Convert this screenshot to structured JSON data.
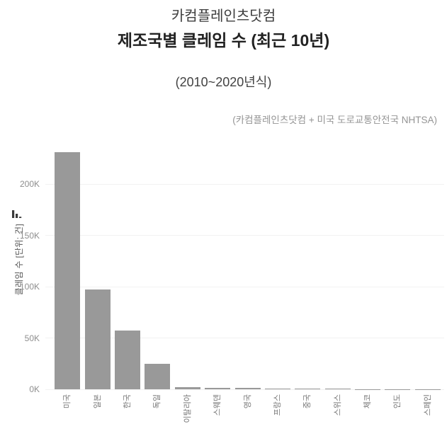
{
  "header": {
    "title_small": "카컴플레인츠닷컴",
    "title_main": "제조국별 클레임 수 (최근 10년)",
    "subtitle": "(2010~2020년식)",
    "source": "(카컴플레인츠닷컴 + 미국 도로교통안전국 NHTSA)"
  },
  "icons": {
    "y_axis_icon": "bar-chart-icon"
  },
  "chart_data": {
    "type": "bar",
    "title": "카컴플레인츠닷컴 제조국별 클레임 수 (최근 10년)",
    "subtitle": "(2010~2020년식)",
    "source": "(카컴플레인츠닷컴 + 미국 도로교통안전국 NHTSA)",
    "categories": [
      "미국",
      "일본",
      "한국",
      "독일",
      "이탈리아",
      "스웨덴",
      "영국",
      "프랑스",
      "중국",
      "스위스",
      "체코",
      "인도",
      "스페인"
    ],
    "values": [
      231000,
      97000,
      57000,
      25000,
      2100,
      1700,
      1400,
      600,
      500,
      400,
      350,
      300,
      250
    ],
    "xlabel": "",
    "ylabel": "클레임 수 [단위: 건]",
    "ytick_labels": [
      "0K",
      "50K",
      "100K",
      "150K",
      "200K"
    ],
    "ytick_values": [
      0,
      50000,
      100000,
      150000,
      200000
    ],
    "ylim": [
      0,
      242000
    ],
    "x_tick_rotation": 90,
    "grid": true,
    "legend_position": "none",
    "bar_color": "#999999",
    "grid_color": "#f2f2f2"
  }
}
